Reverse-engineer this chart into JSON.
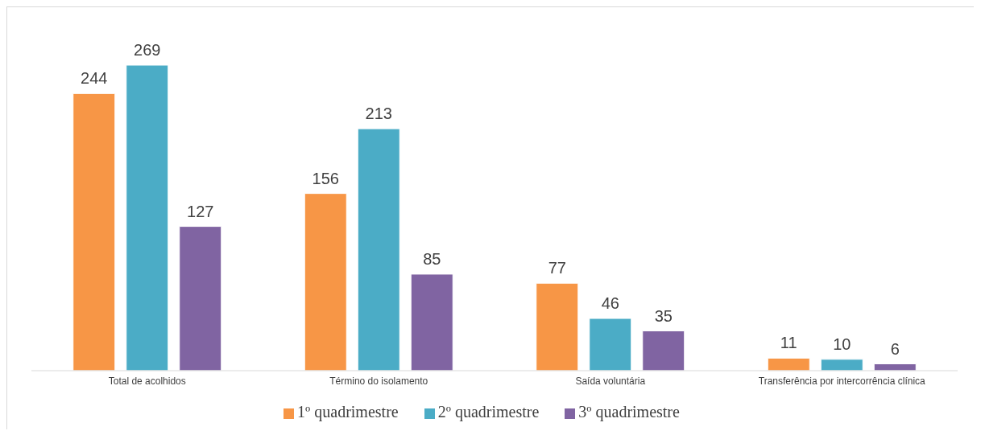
{
  "chart_data": {
    "type": "bar",
    "categories": [
      "Total de acolhidos",
      "Término do isolamento",
      "Saída voluntária",
      "Transferência por intercorrência clínica"
    ],
    "series": [
      {
        "name": "1º quadrimestre",
        "color": "#f79646",
        "values": [
          244,
          156,
          77,
          11
        ]
      },
      {
        "name": "2º quadrimestre",
        "color": "#4bacc6",
        "values": [
          269,
          213,
          46,
          10
        ]
      },
      {
        "name": "3º quadrimestre",
        "color": "#8064a2",
        "values": [
          127,
          85,
          35,
          6
        ]
      }
    ],
    "data_labels": true,
    "legend": "bottom",
    "grid": false
  }
}
